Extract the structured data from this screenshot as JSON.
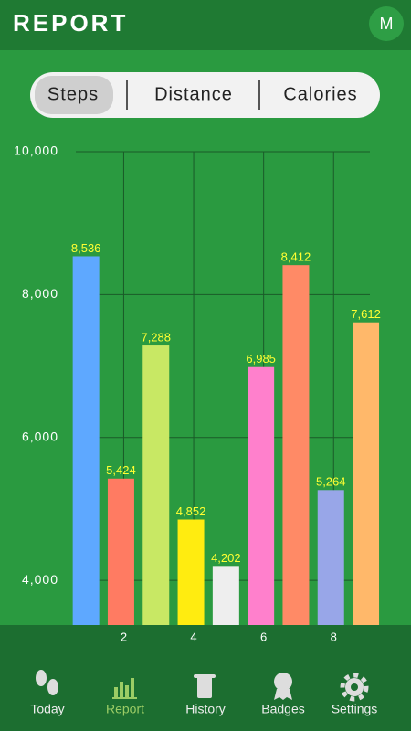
{
  "header": {
    "title": "REPORT",
    "avatar": "M"
  },
  "tabs": [
    "Steps",
    "Distance",
    "Calories"
  ],
  "chart_data": {
    "type": "bar",
    "categories": [
      null,
      "2",
      null,
      "4",
      null,
      "6",
      null,
      "8",
      null
    ],
    "values": [
      8536,
      5424,
      7288,
      4852,
      4202,
      6985,
      8412,
      5264,
      7612
    ],
    "value_labels": [
      "8,536",
      "5,424",
      "7,288",
      "4,852",
      "4,202",
      "6,985",
      "8,412",
      "5,264",
      "7,612"
    ],
    "colors": [
      "#5ea8ff",
      "#ff7b62",
      "#c8e864",
      "#ffec10",
      "#eeeeee",
      "#ff80cc",
      "#ff8a66",
      "#98a6e8",
      "#ffb86a"
    ],
    "ylim": [
      3375,
      10000
    ],
    "yticks": [
      {
        "value": 4000,
        "label": "4,000"
      },
      {
        "value": 6000,
        "label": "6,000"
      },
      {
        "value": 8000,
        "label": "8,000"
      },
      {
        "value": 10000,
        "label": "10,000"
      }
    ],
    "grid": true
  },
  "nav": [
    "Today",
    "Report",
    "History",
    "Badges",
    "Settings"
  ]
}
